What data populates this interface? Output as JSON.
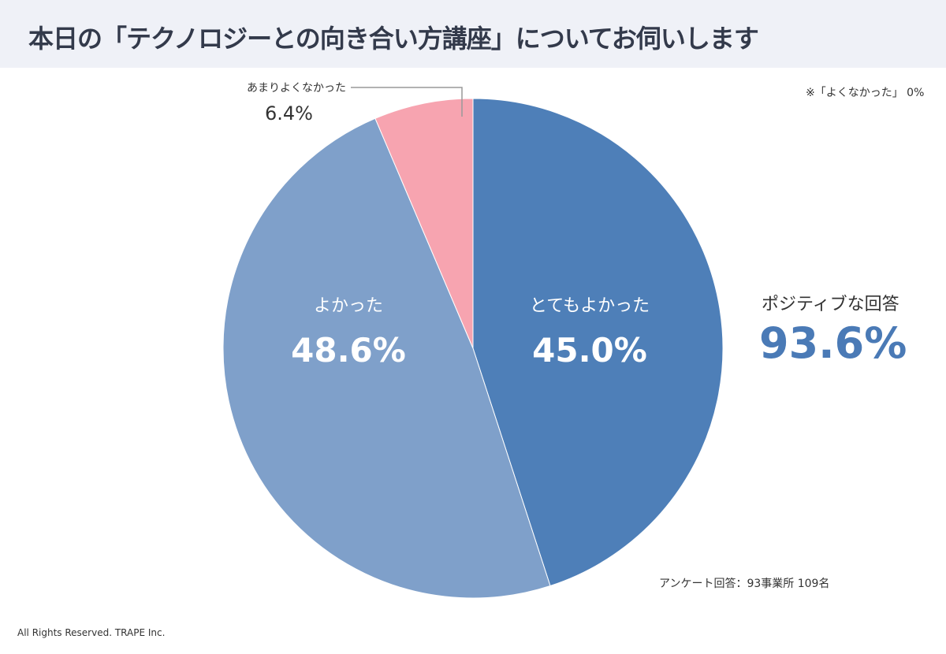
{
  "title": "本日の「テクノロジーとの向き合い方講座」についてお伺いします",
  "chart_data": {
    "type": "pie",
    "start": "12 o'clock, clockwise",
    "slices": [
      {
        "label": "とてもよかった",
        "value": 45.0,
        "display": "45.0%",
        "color": "#4e7fb8"
      },
      {
        "label": "よかった",
        "value": 48.6,
        "display": "48.6%",
        "color": "#7fa0ca"
      },
      {
        "label": "あまりよくなかった",
        "value": 6.4,
        "display": "6.4%",
        "color": "#f7a4b0"
      }
    ]
  },
  "note": "※「よくなかった」 0%",
  "positive": {
    "label": "ポジティブな回答",
    "value": "93.6%"
  },
  "survey": "アンケート回答：93事業所 109名",
  "footer": "All Rights Reserved. TRAPE Inc."
}
